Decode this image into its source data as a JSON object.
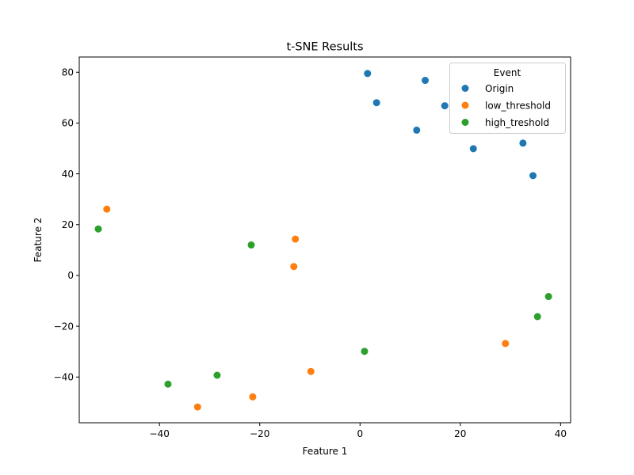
{
  "chart_data": {
    "type": "scatter",
    "title": "t-SNE Results",
    "xlabel": "Feature 1",
    "ylabel": "Feature 2",
    "xlim": [
      -56,
      42
    ],
    "ylim": [
      -58,
      86
    ],
    "xticks": [
      -40,
      -20,
      0,
      20,
      40
    ],
    "yticks": [
      -40,
      -20,
      0,
      20,
      40,
      60,
      80
    ],
    "grid": false,
    "legend": {
      "title": "Event",
      "placement": "top-right"
    },
    "series": [
      {
        "name": "Origin",
        "color": "#1f77b4",
        "points": [
          {
            "x": 1.5,
            "y": 79.5
          },
          {
            "x": 3.3,
            "y": 68.0
          },
          {
            "x": 13.0,
            "y": 76.8
          },
          {
            "x": 16.9,
            "y": 66.8
          },
          {
            "x": 11.3,
            "y": 57.2
          },
          {
            "x": 22.6,
            "y": 49.9
          },
          {
            "x": 32.5,
            "y": 52.1
          },
          {
            "x": 34.5,
            "y": 39.3
          }
        ]
      },
      {
        "name": "low_threshold",
        "color": "#ff7f0e",
        "points": [
          {
            "x": -50.5,
            "y": 26.1
          },
          {
            "x": -12.9,
            "y": 14.3
          },
          {
            "x": -13.2,
            "y": 3.5
          },
          {
            "x": 29.0,
            "y": -26.8
          },
          {
            "x": -9.8,
            "y": -37.8
          },
          {
            "x": -21.4,
            "y": -47.8
          },
          {
            "x": -32.4,
            "y": -51.8
          }
        ]
      },
      {
        "name": "high_treshold",
        "color": "#2ca02c",
        "points": [
          {
            "x": -52.2,
            "y": 18.3
          },
          {
            "x": -21.7,
            "y": 12.0
          },
          {
            "x": 37.6,
            "y": -8.3
          },
          {
            "x": 35.4,
            "y": -16.2
          },
          {
            "x": 0.9,
            "y": -29.9
          },
          {
            "x": -28.5,
            "y": -39.3
          },
          {
            "x": -38.3,
            "y": -42.8
          }
        ]
      }
    ]
  }
}
